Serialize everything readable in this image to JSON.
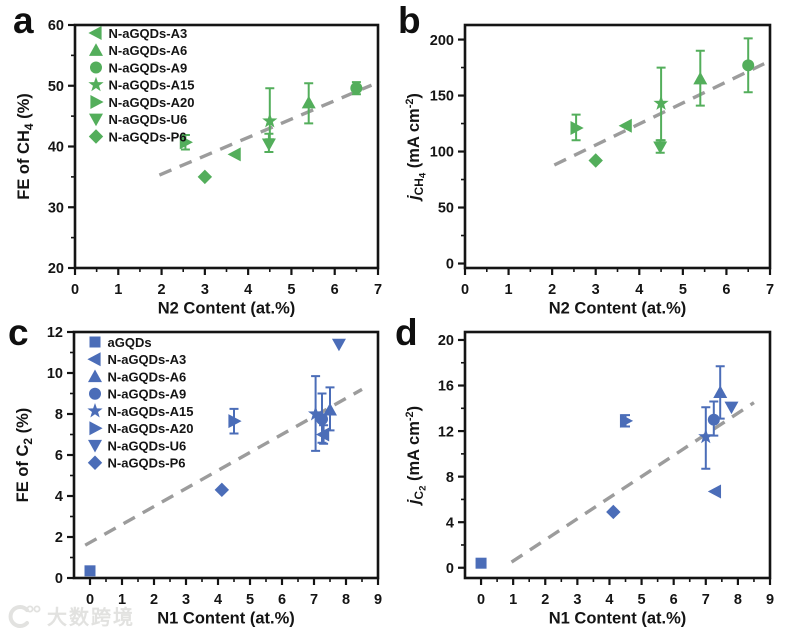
{
  "figure": {
    "colors": {
      "green": "#53ae5b",
      "blue": "#4b6db8",
      "trend": "#9c9c9c",
      "axis": "#141414"
    },
    "watermark": {
      "logo_icon": "k-swirl-logo",
      "text": "大数跨境"
    }
  },
  "chart_data": [
    {
      "id": "a",
      "panel_label": "a",
      "type": "scatter",
      "marker_color": "#53ae5b",
      "xlabel": "N2 Content (at.%)",
      "ylabel_segments": [
        {
          "t": "FE of CH",
          "s": "n"
        },
        {
          "t": "4",
          "s": "sub"
        },
        {
          "t": " (%)",
          "s": "n"
        }
      ],
      "xlim": [
        0,
        7
      ],
      "ylim": [
        20,
        60
      ],
      "xticks": [
        0,
        1,
        2,
        3,
        4,
        5,
        6,
        7
      ],
      "yticks": [
        20,
        30,
        40,
        50,
        60
      ],
      "x_minor_step": 0.5,
      "y_minor_step": 5,
      "grid": false,
      "legend": true,
      "legend_position": "top-left",
      "trend": {
        "x1": 1.95,
        "y1": 35.3,
        "x2": 6.85,
        "y2": 50.1
      },
      "series": [
        {
          "name": "N-aGQDs-A3",
          "marker": "triangle-left",
          "x": 3.7,
          "y": 38.7,
          "err_plus": 0,
          "err_minus": 0
        },
        {
          "name": "N-aGQDs-A6",
          "marker": "triangle-up",
          "x": 5.4,
          "y": 47.2,
          "err_plus": 3.2,
          "err_minus": 3.4
        },
        {
          "name": "N-aGQDs-A9",
          "marker": "circle",
          "x": 6.5,
          "y": 49.6,
          "err_plus": 1.0,
          "err_minus": 1.0
        },
        {
          "name": "N-aGQDs-A15",
          "marker": "star",
          "x": 4.5,
          "y": 44.2,
          "err_plus": 5.4,
          "err_minus": 3.0
        },
        {
          "name": "N-aGQDs-A20",
          "marker": "triangle-right",
          "x": 2.55,
          "y": 40.7,
          "err_plus": 1.2,
          "err_minus": 1.2
        },
        {
          "name": "N-aGQDs-U6",
          "marker": "triangle-down",
          "x": 4.48,
          "y": 40.4,
          "err_plus": 1.7,
          "err_minus": 1.3
        },
        {
          "name": "N-aGQDs-P6",
          "marker": "diamond",
          "x": 3.0,
          "y": 35.0,
          "err_plus": 0,
          "err_minus": 0
        }
      ]
    },
    {
      "id": "b",
      "panel_label": "b",
      "type": "scatter",
      "marker_color": "#53ae5b",
      "xlabel": "N2 Content (at.%)",
      "ylabel_segments": [
        {
          "t": "j",
          "s": "i"
        },
        {
          "t": "CH",
          "s": "sub"
        },
        {
          "t": "4",
          "s": "subsub"
        },
        {
          "t": " (mA cm",
          "s": "n"
        },
        {
          "t": "-2",
          "s": "sup"
        },
        {
          "t": ")",
          "s": "n"
        }
      ],
      "xlim": [
        0,
        7
      ],
      "ylim": [
        -4,
        213
      ],
      "xticks": [
        0,
        1,
        2,
        3,
        4,
        5,
        6,
        7
      ],
      "yticks": [
        0,
        50,
        100,
        150,
        200
      ],
      "x_minor_step": 0.5,
      "y_minor_step": 25,
      "grid": false,
      "legend": false,
      "trend": {
        "x1": 2.05,
        "y1": 88,
        "x2": 6.95,
        "y2": 180
      },
      "series": [
        {
          "name": "N-aGQDs-A3",
          "marker": "triangle-left",
          "x": 3.7,
          "y": 123,
          "err_plus": 0,
          "err_minus": 0
        },
        {
          "name": "N-aGQDs-A6",
          "marker": "triangle-up",
          "x": 5.4,
          "y": 165,
          "err_plus": 25,
          "err_minus": 24
        },
        {
          "name": "N-aGQDs-A9",
          "marker": "circle",
          "x": 6.5,
          "y": 177,
          "err_plus": 24,
          "err_minus": 24
        },
        {
          "name": "N-aGQDs-A15",
          "marker": "star",
          "x": 4.5,
          "y": 143,
          "err_plus": 32,
          "err_minus": 33
        },
        {
          "name": "N-aGQDs-A20",
          "marker": "triangle-right",
          "x": 2.55,
          "y": 121,
          "err_plus": 12,
          "err_minus": 11
        },
        {
          "name": "N-aGQDs-U6",
          "marker": "triangle-down",
          "x": 4.48,
          "y": 104,
          "err_plus": 6,
          "err_minus": 5
        },
        {
          "name": "N-aGQDs-P6",
          "marker": "diamond",
          "x": 3.0,
          "y": 92,
          "err_plus": 0,
          "err_minus": 0
        }
      ]
    },
    {
      "id": "c",
      "panel_label": "c",
      "type": "scatter",
      "marker_color": "#4b6db8",
      "xlabel": "N1 Content (at.%)",
      "ylabel_segments": [
        {
          "t": "FE of C",
          "s": "n"
        },
        {
          "t": "2",
          "s": "sub"
        },
        {
          "t": " (%)",
          "s": "n"
        }
      ],
      "xlim": [
        -0.5,
        9
      ],
      "ylim": [
        0,
        12
      ],
      "xticks": [
        0,
        1,
        2,
        3,
        4,
        5,
        6,
        7,
        8,
        9
      ],
      "yticks": [
        0,
        2,
        4,
        6,
        8,
        10,
        12
      ],
      "x_minor_step": 0.5,
      "y_minor_step": 1,
      "grid": false,
      "legend": true,
      "legend_position": "top-left",
      "trend": {
        "x1": -0.15,
        "y1": 1.6,
        "x2": 8.5,
        "y2": 9.2
      },
      "series": [
        {
          "name": "aGQDs",
          "marker": "square",
          "x": 0,
          "y": 0.35,
          "err_plus": 0,
          "err_minus": 0
        },
        {
          "name": "N-aGQDs-A3",
          "marker": "triangle-left",
          "x": 7.3,
          "y": 7.0,
          "err_plus": 0.45,
          "err_minus": 0.45
        },
        {
          "name": "N-aGQDs-A6",
          "marker": "triangle-up",
          "x": 7.5,
          "y": 8.2,
          "err_plus": 1.1,
          "err_minus": 1.0
        },
        {
          "name": "N-aGQDs-A9",
          "marker": "circle",
          "x": 7.25,
          "y": 7.75,
          "err_plus": 1.25,
          "err_minus": 1.15
        },
        {
          "name": "N-aGQDs-A15",
          "marker": "star",
          "x": 7.05,
          "y": 8.0,
          "err_plus": 1.85,
          "err_minus": 1.8
        },
        {
          "name": "N-aGQDs-A20",
          "marker": "triangle-right",
          "x": 4.5,
          "y": 7.65,
          "err_plus": 0.6,
          "err_minus": 0.6
        },
        {
          "name": "N-aGQDs-U6",
          "marker": "triangle-down",
          "x": 7.78,
          "y": 11.4,
          "err_plus": 0,
          "err_minus": 0
        },
        {
          "name": "N-aGQDs-P6",
          "marker": "diamond",
          "x": 4.12,
          "y": 4.3,
          "err_plus": 0,
          "err_minus": 0
        }
      ]
    },
    {
      "id": "d",
      "panel_label": "d",
      "type": "scatter",
      "marker_color": "#4b6db8",
      "xlabel": "N1 Content (at.%)",
      "ylabel_segments": [
        {
          "t": "j",
          "s": "i"
        },
        {
          "t": "C",
          "s": "sub"
        },
        {
          "t": "2",
          "s": "subsub"
        },
        {
          "t": " (mA cm",
          "s": "n"
        },
        {
          "t": "-2",
          "s": "sup"
        },
        {
          "t": ")",
          "s": "n"
        }
      ],
      "xlim": [
        -0.5,
        9
      ],
      "ylim": [
        -0.9,
        20.7
      ],
      "xticks": [
        0,
        1,
        2,
        3,
        4,
        5,
        6,
        7,
        8,
        9
      ],
      "yticks": [
        0,
        4,
        8,
        12,
        16,
        20
      ],
      "x_minor_step": 0.5,
      "y_minor_step": 2,
      "grid": false,
      "legend": false,
      "trend": {
        "x1": 0.95,
        "y1": 0.5,
        "x2": 8.5,
        "y2": 14.5
      },
      "series": [
        {
          "name": "aGQDs",
          "marker": "square",
          "x": 0,
          "y": 0.4,
          "err_plus": 0,
          "err_minus": 0
        },
        {
          "name": "N-aGQDs-A3",
          "marker": "triangle-left",
          "x": 7.3,
          "y": 6.7,
          "err_plus": 0,
          "err_minus": 0
        },
        {
          "name": "N-aGQDs-A6",
          "marker": "triangle-up",
          "x": 7.45,
          "y": 15.4,
          "err_plus": 2.3,
          "err_minus": 2.3
        },
        {
          "name": "N-aGQDs-A9",
          "marker": "circle",
          "x": 7.25,
          "y": 13.0,
          "err_plus": 1.6,
          "err_minus": 1.4
        },
        {
          "name": "N-aGQDs-A15",
          "marker": "star",
          "x": 7.0,
          "y": 11.5,
          "err_plus": 2.6,
          "err_minus": 2.8
        },
        {
          "name": "N-aGQDs-A20",
          "marker": "triangle-right",
          "x": 4.5,
          "y": 12.9,
          "err_plus": 0.5,
          "err_minus": 0.5
        },
        {
          "name": "N-aGQDs-U6",
          "marker": "triangle-down",
          "x": 7.8,
          "y": 14.1,
          "err_plus": 0,
          "err_minus": 0
        },
        {
          "name": "N-aGQDs-P6",
          "marker": "diamond",
          "x": 4.12,
          "y": 4.9,
          "err_plus": 0,
          "err_minus": 0
        }
      ]
    }
  ]
}
